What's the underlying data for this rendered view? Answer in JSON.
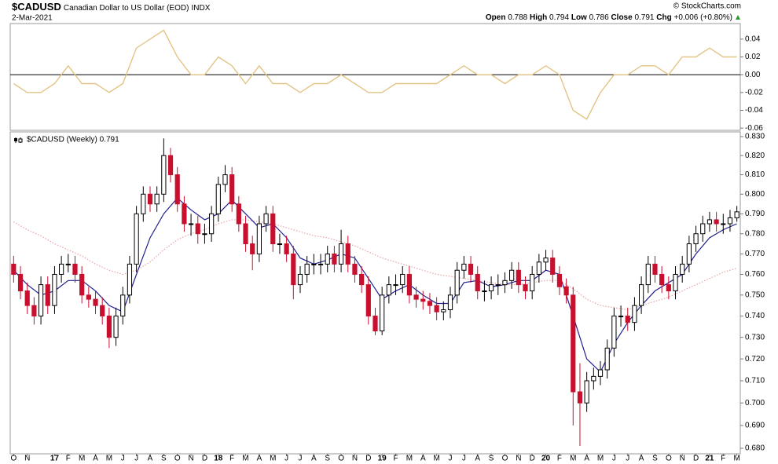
{
  "header": {
    "symbol": "$CADUSD",
    "name": "Canadian Dollar to US Dollar (EOD)",
    "exchange": "INDX",
    "date": "2-Mar-2021",
    "quote": [
      {
        "label": "Open",
        "value": "0.788"
      },
      {
        "label": "High",
        "value": "0.794"
      },
      {
        "label": "Low",
        "value": "0.786"
      },
      {
        "label": "Close",
        "value": "0.791"
      },
      {
        "label": "Chg",
        "value": "+0.006 (+0.80%)"
      }
    ],
    "credit": "© StockCharts.com"
  },
  "chart_data": [
    {
      "type": "line",
      "xlim": [
        -0.5,
        106.5
      ],
      "ylim": [
        -0.0625,
        0.0575
      ],
      "yticks": [
        {
          "value": 0.04,
          "label": "0.04"
        },
        {
          "value": 0.02,
          "label": "0.02"
        },
        {
          "value": 0,
          "label": "0.00"
        },
        {
          "value": -0.02,
          "label": "-0.02"
        },
        {
          "value": -0.04,
          "label": "-0.04"
        },
        {
          "value": -0.06,
          "label": "-0.06"
        }
      ],
      "x": [
        0,
        2,
        4,
        6,
        8,
        10,
        12,
        14,
        16,
        18,
        20,
        22,
        24,
        26,
        28,
        30,
        32,
        34,
        36,
        38,
        40,
        42,
        44,
        46,
        48,
        50,
        52,
        54,
        56,
        58,
        60,
        62,
        64,
        66,
        68,
        70,
        72,
        74,
        76,
        78,
        80,
        82,
        84,
        86,
        88,
        90,
        92,
        94,
        96,
        98,
        100,
        102,
        104,
        106
      ],
      "series": [
        {
          "color": "#e3c485",
          "values": [
            -0.01,
            -0.02,
            -0.02,
            -0.01,
            0.01,
            -0.01,
            -0.01,
            -0.02,
            -0.01,
            0.03,
            0.04,
            0.05,
            0.02,
            0.0,
            0.0,
            0.02,
            0.01,
            -0.01,
            0.01,
            -0.01,
            -0.01,
            -0.02,
            -0.01,
            -0.01,
            0.0,
            -0.01,
            -0.02,
            -0.02,
            -0.01,
            -0.01,
            -0.01,
            -0.01,
            0.0,
            0.01,
            0.0,
            0.0,
            -0.01,
            0.0,
            0.0,
            0.01,
            0.0,
            -0.04,
            -0.05,
            -0.02,
            0.0,
            0.0,
            0.01,
            0.01,
            0.0,
            0.02,
            0.02,
            0.03,
            0.02,
            0.02
          ]
        }
      ]
    },
    {
      "type": "candlestick",
      "legend": "$CADUSD (Weekly) 0.791",
      "log": true,
      "up_color": "#000000",
      "down_color": "#c8102e",
      "xlim": [
        -0.5,
        106.5
      ],
      "ylim": [
        0.6776,
        0.8325
      ],
      "yticks": [
        {
          "value": 0.83,
          "label": "0.830"
        },
        {
          "value": 0.82,
          "label": "0.820"
        },
        {
          "value": 0.81,
          "label": "0.810"
        },
        {
          "value": 0.8,
          "label": "0.800"
        },
        {
          "value": 0.79,
          "label": "0.790"
        },
        {
          "value": 0.78,
          "label": "0.780"
        },
        {
          "value": 0.77,
          "label": "0.770"
        },
        {
          "value": 0.76,
          "label": "0.760"
        },
        {
          "value": 0.75,
          "label": "0.750"
        },
        {
          "value": 0.74,
          "label": "0.740"
        },
        {
          "value": 0.73,
          "label": "0.730"
        },
        {
          "value": 0.72,
          "label": "0.720"
        },
        {
          "value": 0.71,
          "label": "0.710"
        },
        {
          "value": 0.7,
          "label": "0.700"
        },
        {
          "value": 0.69,
          "label": "0.690"
        },
        {
          "value": 0.68,
          "label": "0.680"
        }
      ],
      "xticks": [
        {
          "value": 0,
          "label": "O"
        },
        {
          "value": 2,
          "label": "N"
        },
        {
          "value": 6,
          "label": "17"
        },
        {
          "value": 8,
          "label": "F"
        },
        {
          "value": 10,
          "label": "M"
        },
        {
          "value": 12,
          "label": "A"
        },
        {
          "value": 14,
          "label": "M"
        },
        {
          "value": 16,
          "label": "J"
        },
        {
          "value": 18,
          "label": "J"
        },
        {
          "value": 20,
          "label": "A"
        },
        {
          "value": 22,
          "label": "S"
        },
        {
          "value": 24,
          "label": "O"
        },
        {
          "value": 26,
          "label": "N"
        },
        {
          "value": 28,
          "label": "D"
        },
        {
          "value": 30,
          "label": "18"
        },
        {
          "value": 32,
          "label": "F"
        },
        {
          "value": 34,
          "label": "M"
        },
        {
          "value": 36,
          "label": "A"
        },
        {
          "value": 38,
          "label": "M"
        },
        {
          "value": 40,
          "label": "J"
        },
        {
          "value": 42,
          "label": "J"
        },
        {
          "value": 44,
          "label": "A"
        },
        {
          "value": 46,
          "label": "S"
        },
        {
          "value": 48,
          "label": "O"
        },
        {
          "value": 50,
          "label": "N"
        },
        {
          "value": 52,
          "label": "D"
        },
        {
          "value": 54,
          "label": "19"
        },
        {
          "value": 56,
          "label": "F"
        },
        {
          "value": 58,
          "label": "M"
        },
        {
          "value": 60,
          "label": "A"
        },
        {
          "value": 62,
          "label": "M"
        },
        {
          "value": 64,
          "label": "J"
        },
        {
          "value": 66,
          "label": "J"
        },
        {
          "value": 68,
          "label": "A"
        },
        {
          "value": 70,
          "label": "S"
        },
        {
          "value": 72,
          "label": "O"
        },
        {
          "value": 74,
          "label": "N"
        },
        {
          "value": 76,
          "label": "D"
        },
        {
          "value": 78,
          "label": "20"
        },
        {
          "value": 80,
          "label": "F"
        },
        {
          "value": 82,
          "label": "M"
        },
        {
          "value": 84,
          "label": "A"
        },
        {
          "value": 86,
          "label": "M"
        },
        {
          "value": 88,
          "label": "J"
        },
        {
          "value": 90,
          "label": "J"
        },
        {
          "value": 92,
          "label": "A"
        },
        {
          "value": 94,
          "label": "S"
        },
        {
          "value": 96,
          "label": "O"
        },
        {
          "value": 98,
          "label": "N"
        },
        {
          "value": 100,
          "label": "D"
        },
        {
          "value": 102,
          "label": "21"
        },
        {
          "value": 104,
          "label": "F"
        },
        {
          "value": 106,
          "label": "M"
        }
      ],
      "open": [
        0.765,
        0.76,
        0.752,
        0.745,
        0.74,
        0.755,
        0.745,
        0.76,
        0.765,
        0.765,
        0.76,
        0.75,
        0.748,
        0.745,
        0.74,
        0.73,
        0.74,
        0.75,
        0.765,
        0.79,
        0.8,
        0.795,
        0.8,
        0.82,
        0.81,
        0.795,
        0.785,
        0.785,
        0.78,
        0.78,
        0.79,
        0.805,
        0.81,
        0.795,
        0.785,
        0.775,
        0.77,
        0.785,
        0.79,
        0.775,
        0.775,
        0.77,
        0.755,
        0.76,
        0.765,
        0.765,
        0.765,
        0.77,
        0.765,
        0.775,
        0.765,
        0.76,
        0.755,
        0.74,
        0.733,
        0.75,
        0.755,
        0.755,
        0.76,
        0.75,
        0.748,
        0.747,
        0.745,
        0.742,
        0.743,
        0.75,
        0.762,
        0.765,
        0.76,
        0.752,
        0.752,
        0.755,
        0.755,
        0.757,
        0.762,
        0.755,
        0.752,
        0.76,
        0.766,
        0.768,
        0.76,
        0.754,
        0.75,
        0.705,
        0.7,
        0.71,
        0.712,
        0.715,
        0.725,
        0.74,
        0.74,
        0.737,
        0.745,
        0.755,
        0.765,
        0.76,
        0.755,
        0.752,
        0.76,
        0.765,
        0.775,
        0.78,
        0.785,
        0.787,
        0.785,
        0.785,
        0.788
      ],
      "high": [
        0.769,
        0.764,
        0.756,
        0.749,
        0.759,
        0.759,
        0.764,
        0.769,
        0.77,
        0.769,
        0.764,
        0.754,
        0.752,
        0.749,
        0.744,
        0.744,
        0.754,
        0.769,
        0.794,
        0.804,
        0.804,
        0.804,
        0.829,
        0.824,
        0.814,
        0.799,
        0.79,
        0.789,
        0.785,
        0.794,
        0.809,
        0.815,
        0.814,
        0.799,
        0.789,
        0.779,
        0.789,
        0.794,
        0.794,
        0.78,
        0.779,
        0.774,
        0.764,
        0.769,
        0.77,
        0.77,
        0.774,
        0.774,
        0.782,
        0.779,
        0.769,
        0.764,
        0.759,
        0.744,
        0.754,
        0.759,
        0.76,
        0.764,
        0.764,
        0.754,
        0.752,
        0.751,
        0.749,
        0.747,
        0.754,
        0.766,
        0.769,
        0.769,
        0.764,
        0.757,
        0.759,
        0.76,
        0.761,
        0.766,
        0.766,
        0.759,
        0.764,
        0.77,
        0.772,
        0.772,
        0.764,
        0.758,
        0.754,
        0.718,
        0.714,
        0.716,
        0.719,
        0.729,
        0.744,
        0.745,
        0.744,
        0.749,
        0.759,
        0.769,
        0.769,
        0.764,
        0.759,
        0.764,
        0.769,
        0.779,
        0.784,
        0.789,
        0.791,
        0.791,
        0.79,
        0.792,
        0.794
      ],
      "low": [
        0.756,
        0.748,
        0.741,
        0.736,
        0.736,
        0.741,
        0.741,
        0.756,
        0.761,
        0.756,
        0.746,
        0.744,
        0.741,
        0.736,
        0.725,
        0.726,
        0.736,
        0.746,
        0.761,
        0.786,
        0.791,
        0.791,
        0.796,
        0.806,
        0.791,
        0.781,
        0.779,
        0.775,
        0.775,
        0.776,
        0.786,
        0.801,
        0.791,
        0.781,
        0.771,
        0.762,
        0.766,
        0.781,
        0.771,
        0.77,
        0.766,
        0.748,
        0.751,
        0.756,
        0.76,
        0.76,
        0.761,
        0.761,
        0.761,
        0.761,
        0.756,
        0.751,
        0.736,
        0.731,
        0.731,
        0.746,
        0.75,
        0.751,
        0.746,
        0.744,
        0.743,
        0.741,
        0.738,
        0.738,
        0.739,
        0.746,
        0.758,
        0.756,
        0.748,
        0.747,
        0.748,
        0.75,
        0.751,
        0.753,
        0.751,
        0.748,
        0.748,
        0.756,
        0.762,
        0.756,
        0.75,
        0.746,
        0.69,
        0.681,
        0.696,
        0.706,
        0.708,
        0.711,
        0.721,
        0.735,
        0.733,
        0.733,
        0.741,
        0.751,
        0.756,
        0.751,
        0.748,
        0.748,
        0.756,
        0.761,
        0.771,
        0.776,
        0.781,
        0.781,
        0.78,
        0.781,
        0.786
      ],
      "close": [
        0.76,
        0.752,
        0.745,
        0.74,
        0.755,
        0.745,
        0.76,
        0.765,
        0.765,
        0.76,
        0.75,
        0.748,
        0.745,
        0.74,
        0.73,
        0.74,
        0.75,
        0.765,
        0.79,
        0.8,
        0.795,
        0.8,
        0.82,
        0.81,
        0.795,
        0.785,
        0.785,
        0.78,
        0.78,
        0.79,
        0.805,
        0.81,
        0.795,
        0.785,
        0.775,
        0.77,
        0.785,
        0.79,
        0.775,
        0.775,
        0.77,
        0.755,
        0.76,
        0.765,
        0.765,
        0.765,
        0.77,
        0.765,
        0.775,
        0.765,
        0.76,
        0.755,
        0.74,
        0.733,
        0.75,
        0.755,
        0.755,
        0.76,
        0.75,
        0.748,
        0.747,
        0.745,
        0.742,
        0.743,
        0.75,
        0.762,
        0.765,
        0.76,
        0.752,
        0.752,
        0.755,
        0.755,
        0.757,
        0.762,
        0.755,
        0.752,
        0.76,
        0.766,
        0.768,
        0.76,
        0.754,
        0.75,
        0.705,
        0.7,
        0.71,
        0.712,
        0.715,
        0.725,
        0.74,
        0.74,
        0.737,
        0.745,
        0.755,
        0.765,
        0.76,
        0.755,
        0.752,
        0.76,
        0.765,
        0.775,
        0.78,
        0.785,
        0.787,
        0.785,
        0.785,
        0.788,
        0.791
      ],
      "overlays": {
        "x": [
          0,
          2,
          4,
          6,
          8,
          10,
          12,
          14,
          16,
          18,
          20,
          22,
          24,
          26,
          28,
          30,
          32,
          34,
          36,
          38,
          40,
          42,
          44,
          46,
          48,
          50,
          52,
          54,
          56,
          58,
          60,
          62,
          64,
          66,
          68,
          70,
          72,
          74,
          76,
          78,
          80,
          82,
          84,
          86,
          88,
          90,
          92,
          94,
          96,
          98,
          100,
          102,
          104,
          106
        ],
        "series": [
          {
            "color": "#e8a3a3",
            "style": "dotted",
            "values": [
              0.786,
              0.782,
              0.779,
              0.775,
              0.772,
              0.769,
              0.765,
              0.762,
              0.76,
              0.762,
              0.766,
              0.772,
              0.777,
              0.78,
              0.782,
              0.785,
              0.787,
              0.787,
              0.786,
              0.785,
              0.783,
              0.781,
              0.779,
              0.778,
              0.776,
              0.774,
              0.771,
              0.768,
              0.766,
              0.764,
              0.762,
              0.76,
              0.759,
              0.758,
              0.757,
              0.756,
              0.755,
              0.755,
              0.756,
              0.757,
              0.757,
              0.753,
              0.748,
              0.745,
              0.744,
              0.743,
              0.745,
              0.747,
              0.749,
              0.752,
              0.755,
              0.758,
              0.761,
              0.763
            ]
          },
          {
            "color": "#1f1f8f",
            "style": "solid",
            "values": [
              0.762,
              0.755,
              0.75,
              0.752,
              0.757,
              0.757,
              0.752,
              0.745,
              0.742,
              0.76,
              0.778,
              0.79,
              0.798,
              0.792,
              0.787,
              0.79,
              0.797,
              0.79,
              0.783,
              0.785,
              0.778,
              0.768,
              0.765,
              0.767,
              0.77,
              0.768,
              0.758,
              0.748,
              0.752,
              0.755,
              0.75,
              0.746,
              0.746,
              0.756,
              0.757,
              0.754,
              0.755,
              0.757,
              0.757,
              0.762,
              0.76,
              0.74,
              0.72,
              0.714,
              0.727,
              0.737,
              0.745,
              0.752,
              0.756,
              0.76,
              0.77,
              0.778,
              0.782,
              0.785
            ]
          }
        ]
      }
    }
  ]
}
